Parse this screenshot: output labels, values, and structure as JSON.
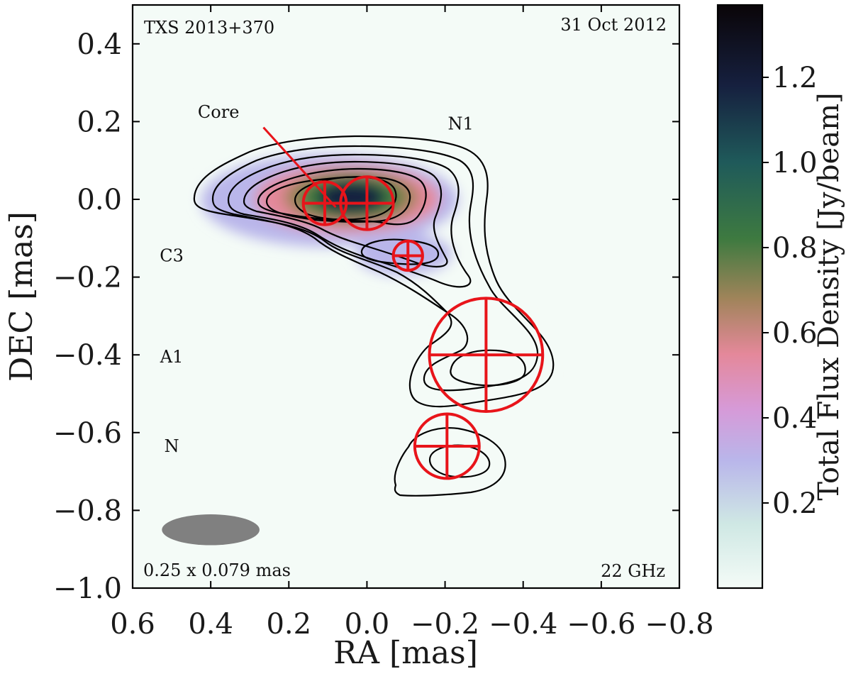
{
  "chart_data": {
    "type": "heatmap",
    "subtype": "VLBI total intensity map with contours and model components",
    "source": "TXS 2013+370",
    "date": "31 Oct 2012",
    "frequency": "22 GHz",
    "beam_label": "0.25 x 0.079 mas",
    "beam": {
      "major_mas": 0.25,
      "minor_mas": 0.079,
      "center_ra": 0.4,
      "center_dec": -0.85
    },
    "xlabel": "RA [mas]",
    "ylabel": "DEC [mas]",
    "xlim": [
      0.6,
      -0.8
    ],
    "ylim": [
      -1.0,
      0.5
    ],
    "xticks": [
      0.6,
      0.4,
      0.2,
      0.0,
      -0.2,
      -0.4,
      -0.6,
      -0.8
    ],
    "xtick_labels": [
      "0.6",
      "0.4",
      "0.2",
      "0.0",
      "−0.2",
      "−0.4",
      "−0.6",
      "−0.8"
    ],
    "yticks": [
      0.4,
      0.2,
      0.0,
      -0.2,
      -0.4,
      -0.6,
      -0.8,
      -1.0
    ],
    "ytick_labels": [
      "0.4",
      "0.2",
      "0.0",
      "−0.2",
      "−0.4",
      "−0.6",
      "−0.8",
      "−1.0"
    ],
    "colorbar": {
      "label": "Total Flux Density [Jy/beam]",
      "range": [
        0.0,
        1.37
      ],
      "ticks": [
        0.2,
        0.4,
        0.6,
        0.8,
        1.0,
        1.2
      ],
      "tick_labels": [
        "0.2",
        "0.4",
        "0.6",
        "0.8",
        "1.0",
        "1.2"
      ],
      "stops": [
        {
          "v": 0.0,
          "color": "#f4fbf7"
        },
        {
          "v": 0.15,
          "color": "#cfe8e4"
        },
        {
          "v": 0.3,
          "color": "#b9b6ea"
        },
        {
          "v": 0.42,
          "color": "#d69ad8"
        },
        {
          "v": 0.55,
          "color": "#e4889a"
        },
        {
          "v": 0.68,
          "color": "#a0845a"
        },
        {
          "v": 0.82,
          "color": "#3e7a40"
        },
        {
          "v": 1.0,
          "color": "#1f5a5a"
        },
        {
          "v": 1.18,
          "color": "#16203f"
        },
        {
          "v": 1.37,
          "color": "#0a0508"
        }
      ]
    },
    "component_labels": [
      {
        "text": "Core",
        "ra": 0.38,
        "dec": 0.21
      },
      {
        "text": "N1",
        "ra": -0.24,
        "dec": 0.18
      },
      {
        "text": "C3",
        "ra": 0.5,
        "dec": -0.16
      },
      {
        "text": "A1",
        "ra": 0.5,
        "dec": -0.42
      },
      {
        "text": "N",
        "ra": 0.5,
        "dec": -0.65
      }
    ],
    "core_pointer": {
      "from": {
        "ra": 0.265,
        "dec": 0.185
      },
      "to": {
        "ra": 0.08,
        "dec": -0.02
      }
    },
    "model_components": [
      {
        "ra": 0.108,
        "dec": -0.01,
        "diameter_mas": 0.11
      },
      {
        "ra": 0.0,
        "dec": -0.01,
        "diameter_mas": 0.135
      },
      {
        "ra": -0.105,
        "dec": -0.145,
        "diameter_mas": 0.075
      },
      {
        "ra": -0.305,
        "dec": -0.4,
        "diameter_mas": 0.29
      },
      {
        "ra": -0.205,
        "dec": -0.635,
        "diameter_mas": 0.165
      }
    ],
    "contour_color": "#000000",
    "component_color": "#e8141a"
  }
}
